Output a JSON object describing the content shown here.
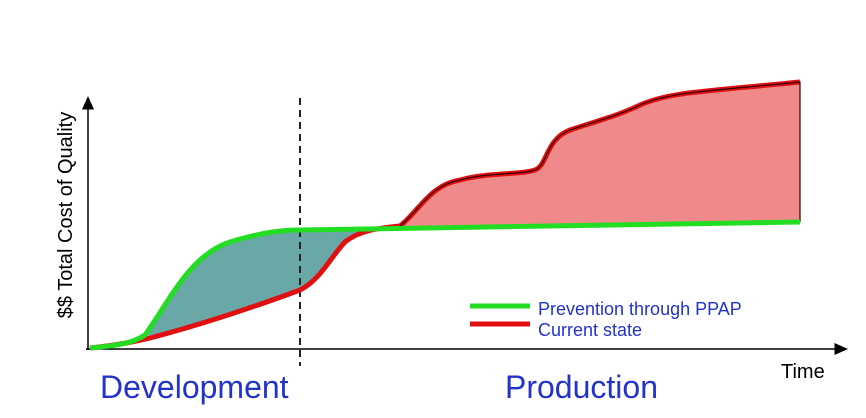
{
  "y_axis_label": "$$ Total Cost of Quality",
  "x_axis_label": "Time",
  "phases": [
    "Development",
    "Production"
  ],
  "legend": [
    "Prevention through PPAP",
    "Current state"
  ]
}
